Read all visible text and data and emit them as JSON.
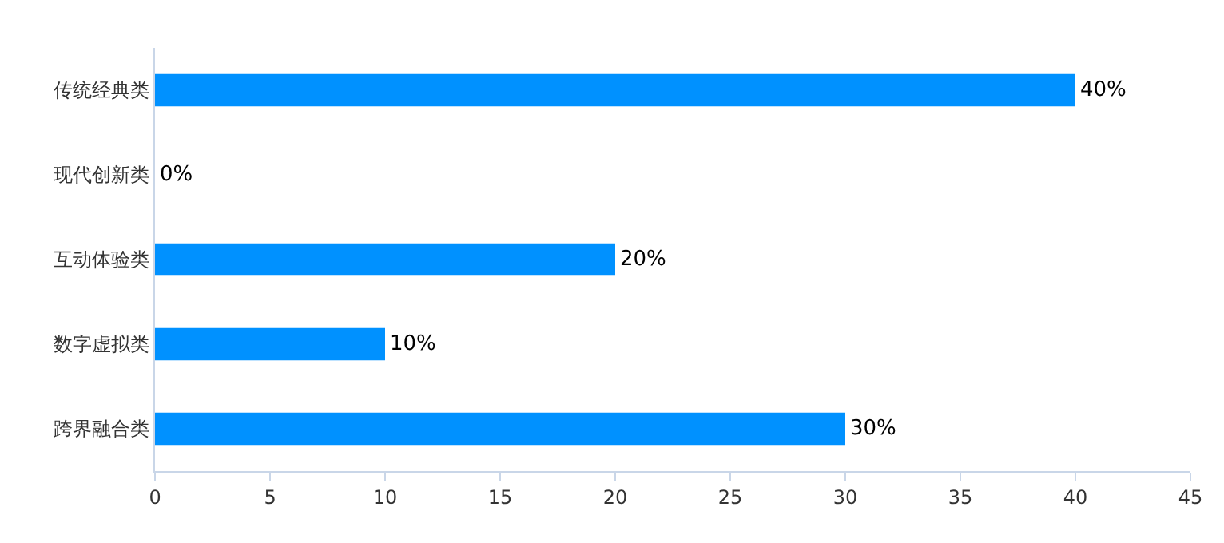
{
  "chart_data": {
    "type": "bar",
    "orientation": "horizontal",
    "categories": [
      "传统经典类",
      "现代创新类",
      "互动体验类",
      "数字虚拟类",
      "跨界融合类"
    ],
    "values": [
      40,
      0,
      20,
      10,
      30
    ],
    "value_labels": [
      "40%",
      "0%",
      "20%",
      "10%",
      "30%"
    ],
    "color": "#0091ff",
    "xlim": [
      0,
      45
    ],
    "xticks": [
      0,
      5,
      10,
      15,
      20,
      25,
      30,
      35,
      40,
      45
    ],
    "legend": false
  }
}
